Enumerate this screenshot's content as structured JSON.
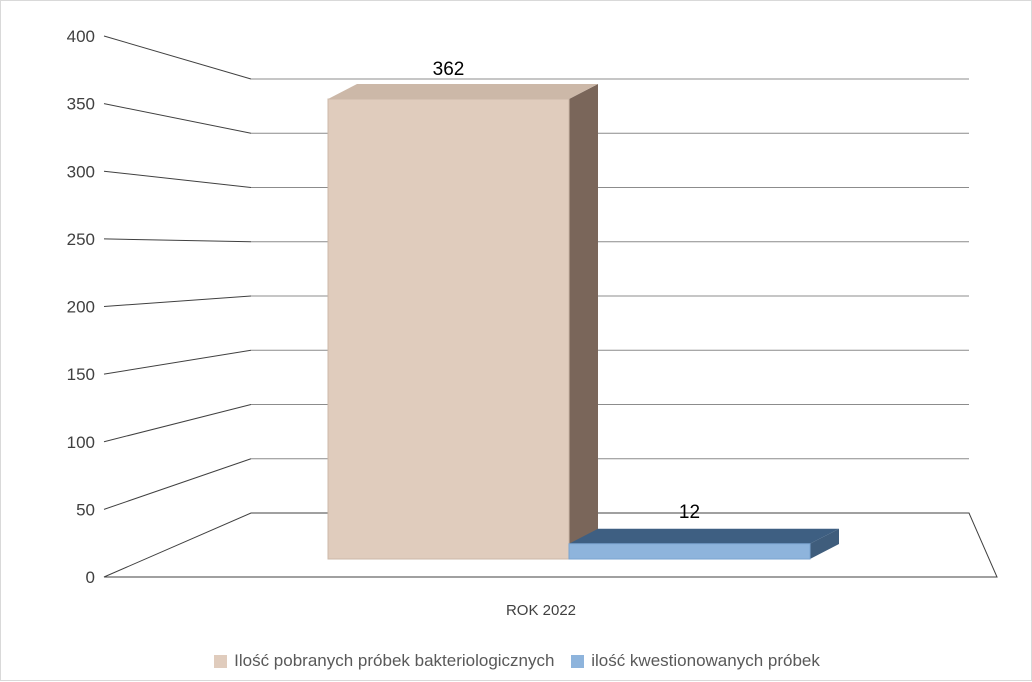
{
  "chart_data": {
    "type": "bar",
    "categories": [
      "ROK 2022"
    ],
    "series": [
      {
        "name": "Ilość pobranych próbek bakteriologicznych",
        "values": [
          362
        ],
        "color": "#e0ccbd"
      },
      {
        "name": "ilość kwestionowanych próbek",
        "values": [
          12
        ],
        "color": "#8eb4dc"
      }
    ],
    "ylim": [
      0,
      400
    ],
    "ytick_step": 50,
    "yticks": [
      "0",
      "50",
      "100",
      "150",
      "200",
      "250",
      "300",
      "350",
      "400"
    ],
    "data_labels": [
      "362",
      "12"
    ],
    "grid": true,
    "legend_position": "bottom",
    "style": "3d-column"
  }
}
